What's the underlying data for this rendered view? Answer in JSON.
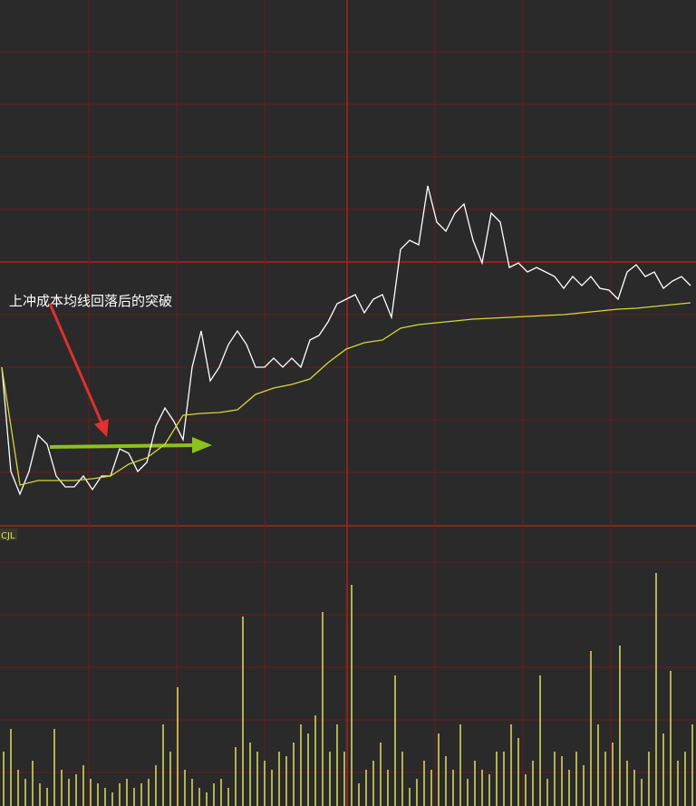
{
  "chart_data": [
    {
      "type": "line",
      "annotation": "上冲成本均线回落后的突破",
      "ylim": [
        0,
        580
      ],
      "series": [
        {
          "color": "#ffffff",
          "values": [
            175,
            60,
            35,
            60,
            100,
            90,
            55,
            43,
            43,
            55,
            40,
            55,
            55,
            85,
            80,
            60,
            70,
            110,
            130,
            115,
            95,
            175,
            215,
            160,
            175,
            200,
            215,
            200,
            175,
            175,
            185,
            175,
            185,
            175,
            205,
            210,
            225,
            245,
            250,
            255,
            235,
            250,
            255,
            230,
            305,
            315,
            310,
            375,
            335,
            325,
            345,
            355,
            315,
            290,
            345,
            335,
            285,
            290,
            280,
            285,
            280,
            275,
            262,
            275,
            265,
            275,
            262,
            260,
            250,
            280,
            288,
            275,
            280,
            262,
            270,
            275,
            265
          ]
        },
        {
          "color": "#d6d63a",
          "values": [
            175,
            45,
            50,
            50,
            50,
            52,
            55,
            68,
            75,
            90,
            122,
            124,
            125,
            128,
            145,
            152,
            156,
            162,
            180,
            195,
            202,
            205,
            218,
            222,
            224,
            226,
            228,
            229,
            230,
            231,
            232,
            233,
            235,
            237,
            239,
            240,
            242,
            244,
            246
          ]
        }
      ]
    },
    {
      "type": "bar",
      "title": "CJL",
      "color": "#e0e060",
      "ylim": [
        0,
        309
      ],
      "values": [
        60,
        85,
        40,
        30,
        50,
        25,
        20,
        85,
        40,
        30,
        35,
        45,
        30,
        25,
        20,
        15,
        25,
        30,
        20,
        25,
        30,
        45,
        90,
        60,
        131,
        40,
        30,
        20,
        15,
        25,
        30,
        20,
        65,
        209,
        70,
        60,
        50,
        40,
        60,
        55,
        70,
        90,
        80,
        100,
        214,
        60,
        90,
        60,
        244,
        25,
        40,
        50,
        70,
        40,
        144,
        60,
        20,
        30,
        50,
        40,
        80,
        55,
        40,
        90,
        30,
        50,
        40,
        35,
        60,
        60,
        90,
        75,
        35,
        50,
        144,
        30,
        60,
        55,
        40,
        60,
        45,
        171,
        90,
        60,
        70,
        177,
        50,
        40,
        30,
        60,
        257,
        80,
        149,
        50,
        60,
        90
      ]
    }
  ]
}
